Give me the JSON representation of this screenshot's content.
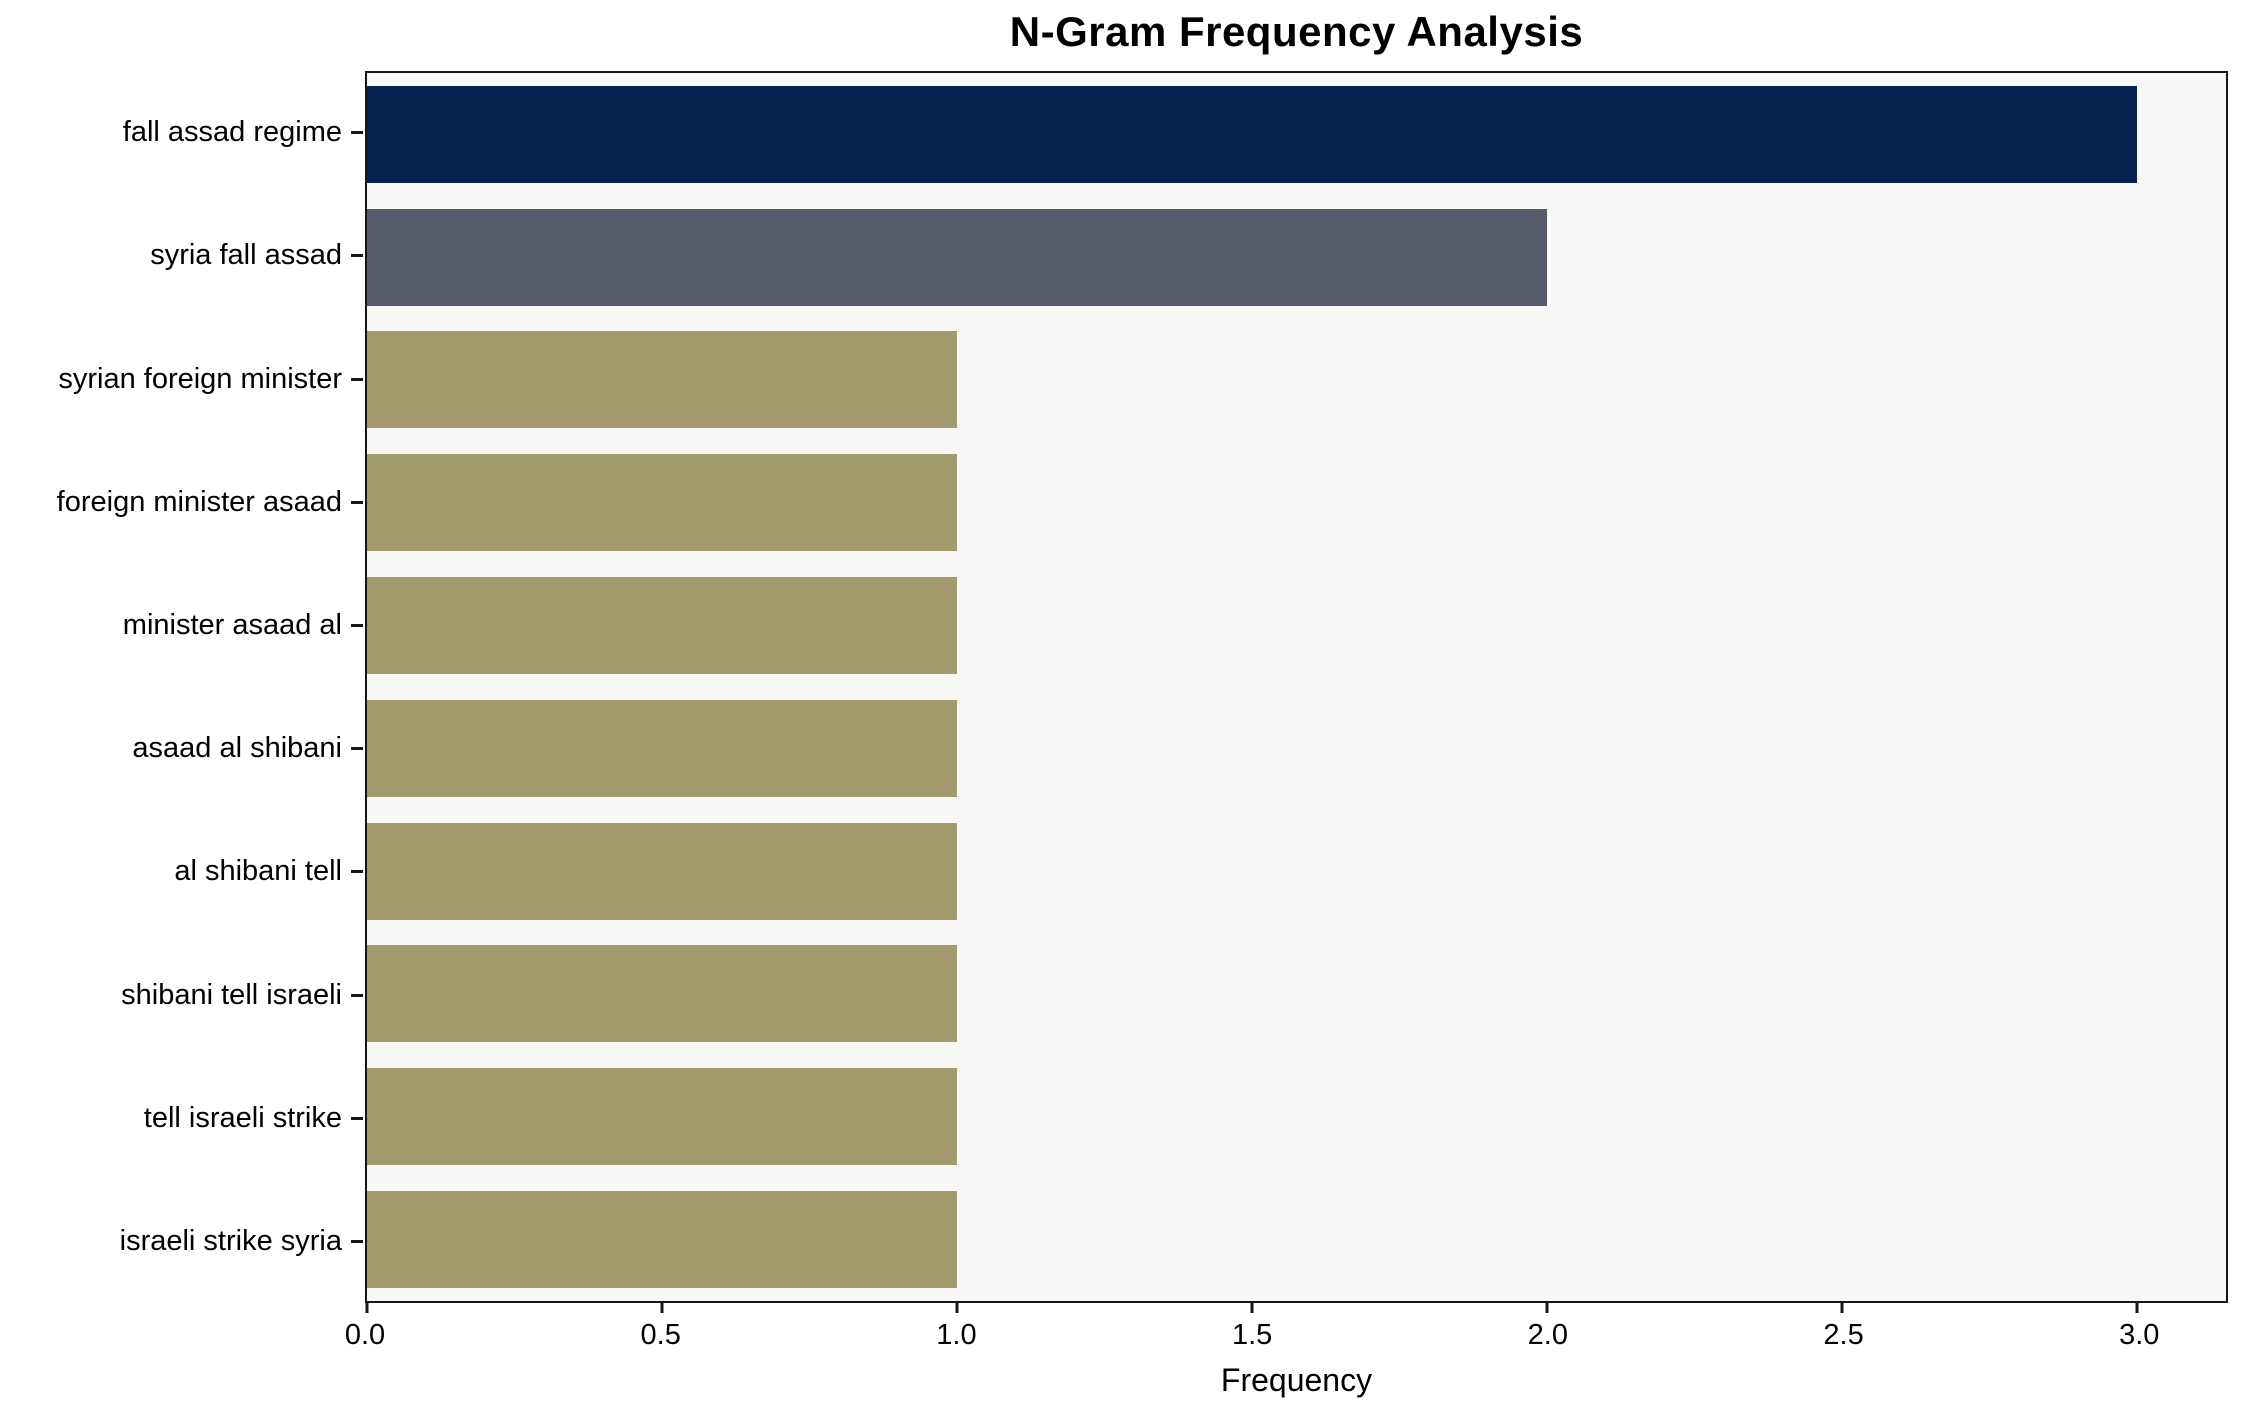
{
  "chart_data": {
    "type": "bar",
    "orientation": "horizontal",
    "title": "N-Gram Frequency Analysis",
    "xlabel": "Frequency",
    "categories": [
      "fall assad regime",
      "syria fall assad",
      "syrian foreign minister",
      "foreign minister asaad",
      "minister asaad al",
      "asaad al shibani",
      "al shibani tell",
      "shibani tell israeli",
      "tell israeli strike",
      "israeli strike syria"
    ],
    "values": [
      3,
      2,
      1,
      1,
      1,
      1,
      1,
      1,
      1,
      1
    ],
    "xticks": [
      "0.0",
      "0.5",
      "1.0",
      "1.5",
      "2.0",
      "2.5",
      "3.0"
    ],
    "xlim": [
      0,
      3.15
    ],
    "grid": false,
    "legend_position": "none",
    "bar_colors": [
      "#042350",
      "#565b6c",
      "#a39a6e",
      "#a39a6e",
      "#a39a6e",
      "#a39a6e",
      "#a39a6e",
      "#a39a6e",
      "#a39a6e",
      "#a39a6e"
    ],
    "plot_background": "#f8f8f7",
    "figure_background": "#ffffff",
    "spine_color": "#161616"
  }
}
